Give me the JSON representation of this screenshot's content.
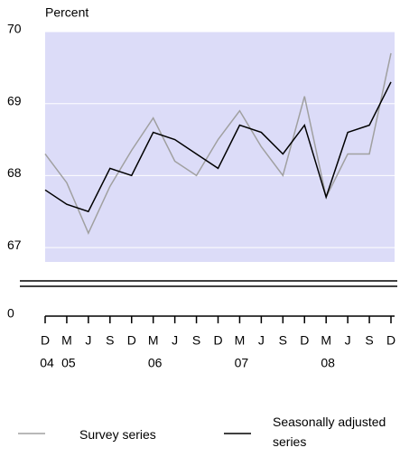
{
  "chart_data": {
    "type": "line",
    "y_label": "Percent",
    "categories": [
      "D",
      "M",
      "J",
      "S",
      "D",
      "M",
      "J",
      "S",
      "D",
      "M",
      "J",
      "S",
      "D",
      "M",
      "J",
      "S",
      "D"
    ],
    "x_group_labels": [
      "04",
      "05",
      null,
      null,
      null,
      "06",
      null,
      null,
      null,
      "07",
      null,
      null,
      null,
      "08",
      null,
      null,
      null
    ],
    "series": [
      {
        "name": "Survey series",
        "color": "#a0a0a0",
        "values": [
          68.3,
          67.9,
          67.2,
          67.85,
          68.35,
          68.8,
          68.2,
          68.0,
          68.5,
          68.9,
          68.4,
          68.0,
          69.1,
          67.7,
          68.3,
          68.3,
          69.7
        ]
      },
      {
        "name": "Seasonally adjusted series",
        "color": "#000000",
        "values": [
          67.8,
          67.6,
          67.5,
          68.1,
          68.0,
          68.6,
          68.5,
          68.3,
          68.1,
          68.7,
          68.6,
          68.3,
          68.7,
          67.7,
          68.6,
          68.7,
          69.3
        ]
      }
    ],
    "ylim": [
      66.8,
      70
    ],
    "yticks": [
      67,
      68,
      69,
      70
    ],
    "y_break_tick": 0,
    "background": "#dcdcf8",
    "grid": true
  }
}
